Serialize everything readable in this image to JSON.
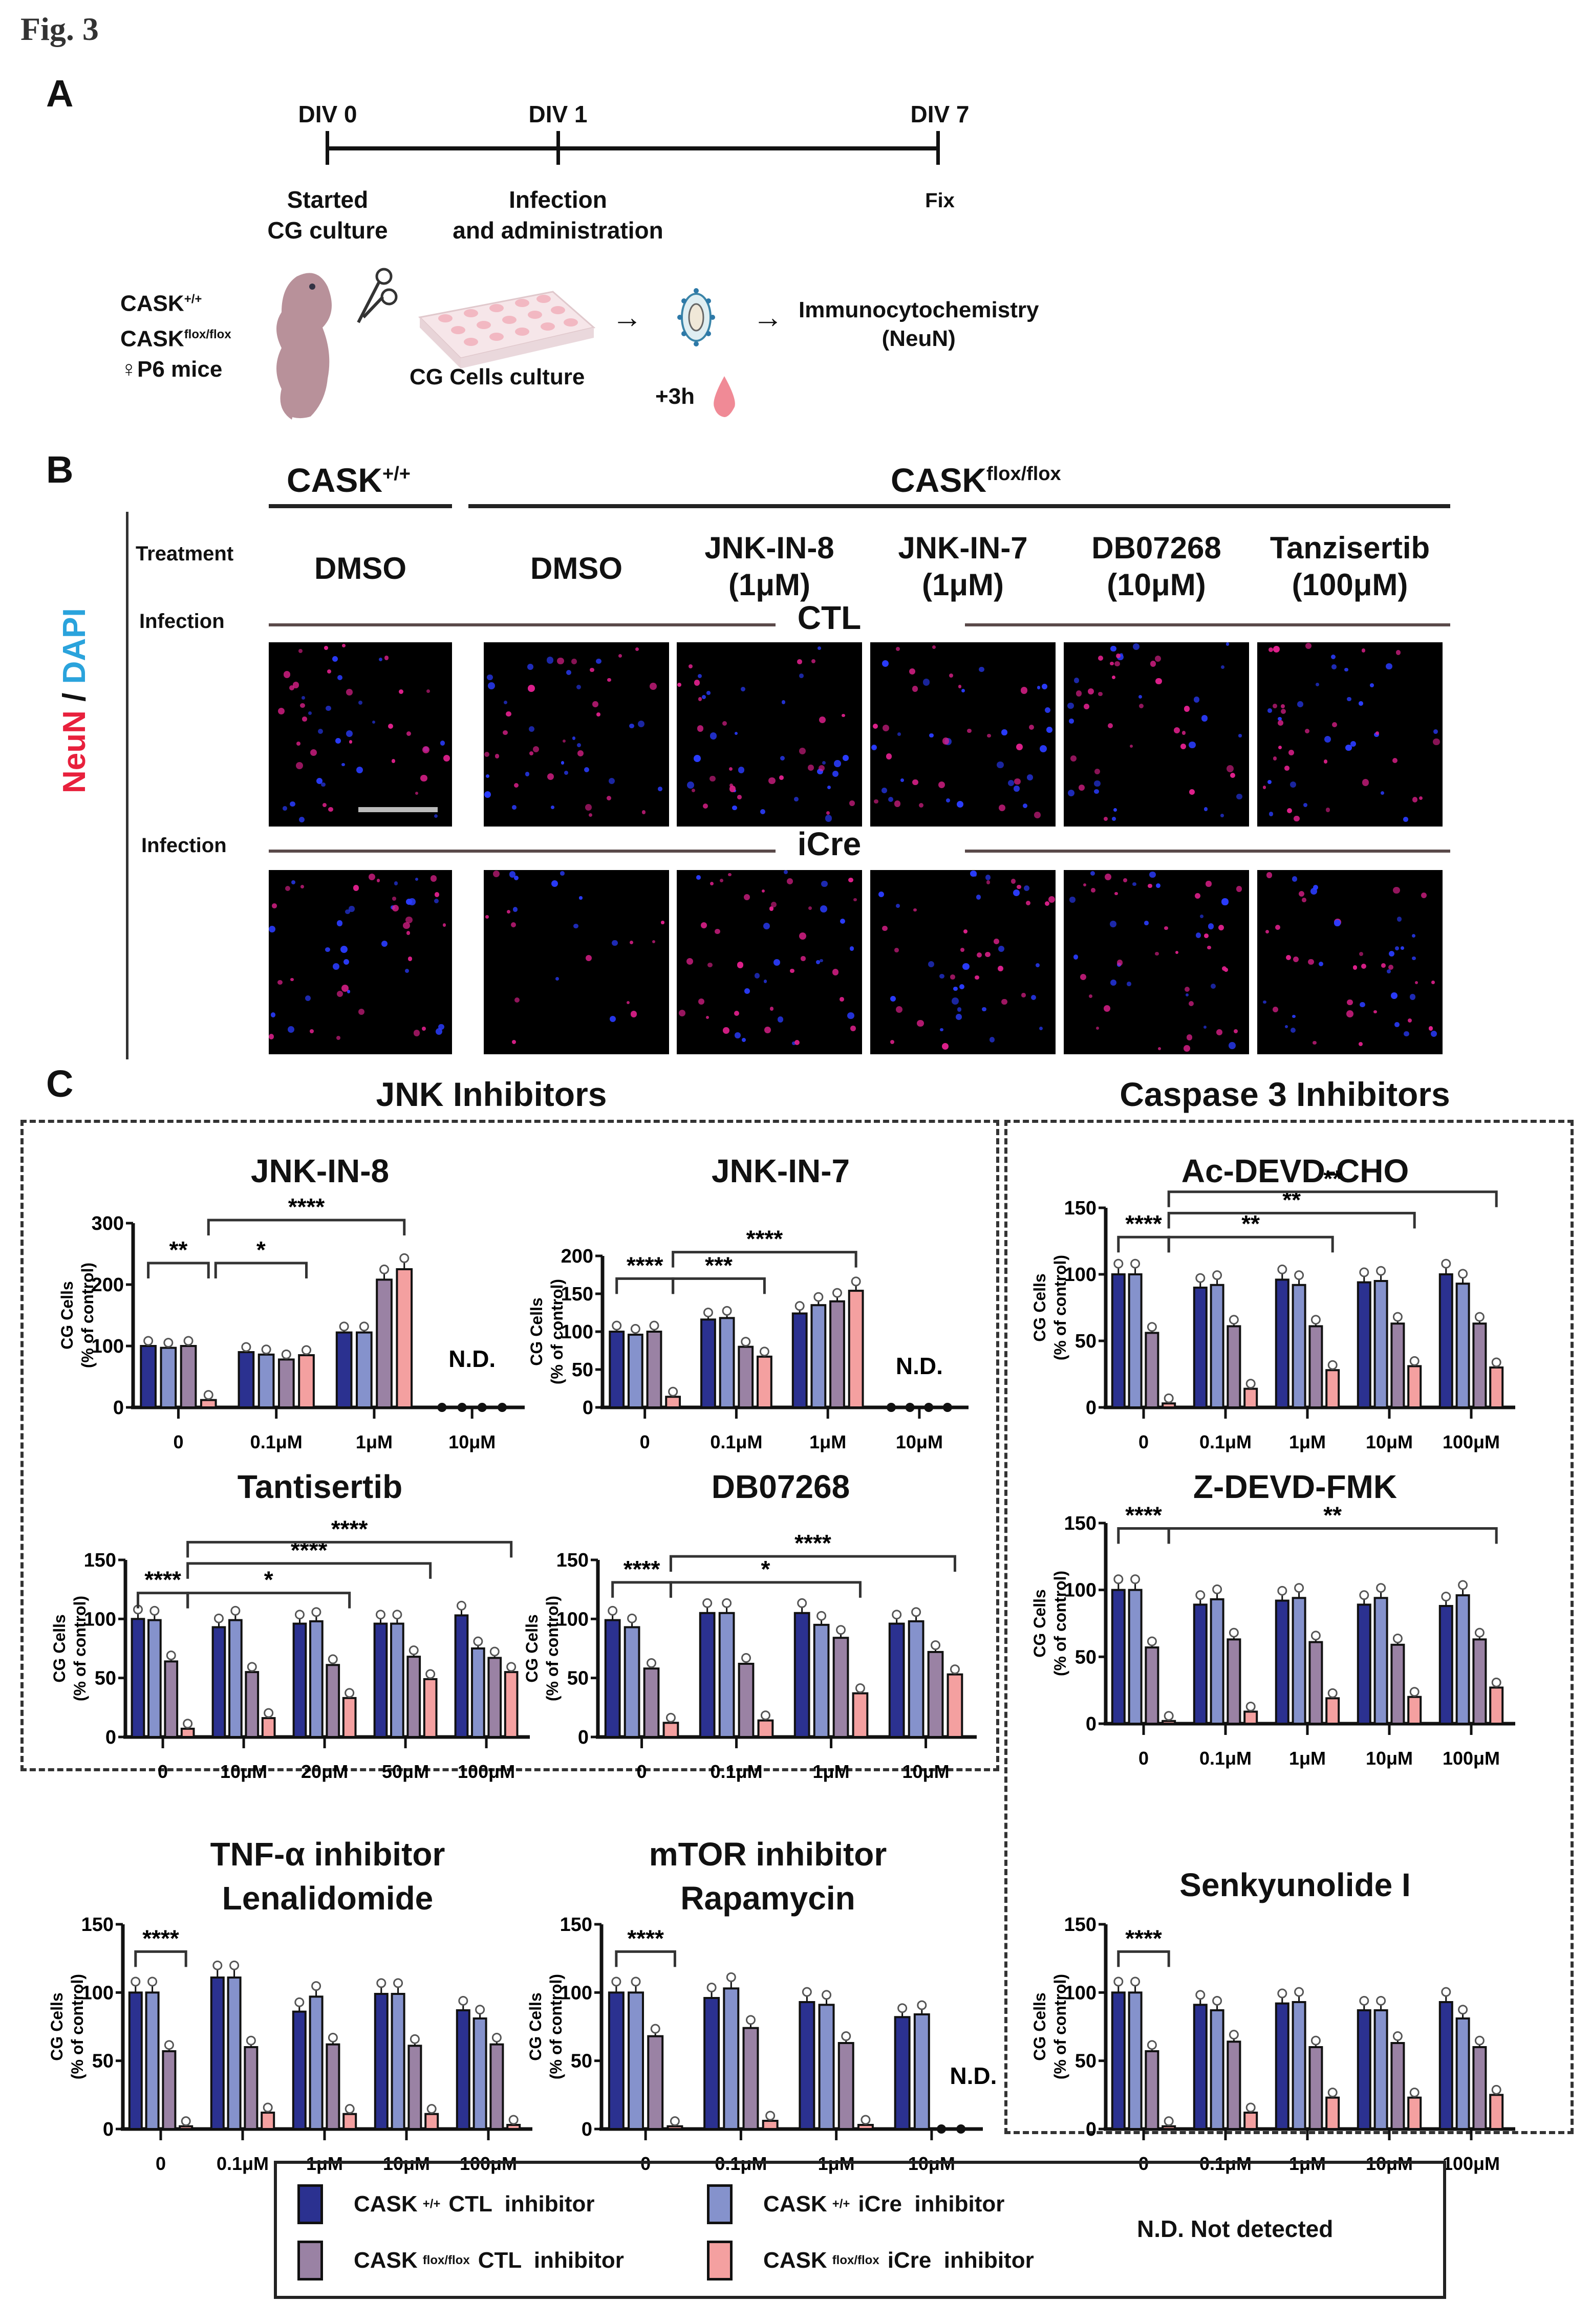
{
  "figure": {
    "label": "Fig. 3"
  },
  "panel_a": {
    "letter": "A",
    "timeline": [
      {
        "tick": "DIV 0",
        "caption_lines": [
          "Started",
          "CG culture"
        ]
      },
      {
        "tick": "DIV 1",
        "caption_lines": [
          "Infection",
          "and administration"
        ]
      },
      {
        "tick": "DIV 7",
        "caption_lines": [
          "Fix"
        ]
      }
    ],
    "mice_label_lines": [
      "CASK",
      "CASK",
      "♀P6 mice"
    ],
    "mice_superscripts": [
      "+/+",
      "flox/flox"
    ],
    "culture_label": "CG Cells culture",
    "time_label": "+3h",
    "readout_lines": [
      "Immunocytochemistry",
      "(NeuN)"
    ],
    "arrow": "→"
  },
  "panel_b": {
    "letter": "B",
    "genotypes": [
      {
        "name": "CASK",
        "sup": "+/+"
      },
      {
        "name": "CASK",
        "sup": "flox/flox"
      }
    ],
    "treatment_label": "Treatment",
    "infection_label": "Infection",
    "treatments": [
      {
        "name": "DMSO",
        "dose": ""
      },
      {
        "name": "DMSO",
        "dose": ""
      },
      {
        "name": "JNK-IN-8",
        "dose": "(1μM)"
      },
      {
        "name": "JNK-IN-7",
        "dose": "(1μM)"
      },
      {
        "name": "DB07268",
        "dose": "(10μM)"
      },
      {
        "name": "Tanzisertib",
        "dose": "(100μM)"
      }
    ],
    "infections": [
      "CTL",
      "iCre"
    ],
    "stain_label": {
      "neun": "NeuN",
      "sep": " / ",
      "dapi": "DAPI"
    },
    "colors": {
      "neun": "#e8203c",
      "dapi": "#2aa3dc"
    }
  },
  "panel_c": {
    "letter": "C",
    "groups": {
      "jnk": "JNK Inhibitors",
      "caspase": "Caspase 3 Inhibitors"
    },
    "y_label_lines": [
      "CG Cells",
      "(% of control)"
    ],
    "legend": {
      "items": [
        {
          "label": "CASK",
          "sup": "+/+",
          "rest": "CTL  inhibitor",
          "color": "#2b3190"
        },
        {
          "label": "CASK",
          "sup": "+/+",
          "rest": "iCre  inhibitor",
          "color": "#8592cc"
        },
        {
          "label": "CASK",
          "sup": "flox/flox",
          "rest": "CTL  inhibitor",
          "color": "#9a82a4"
        },
        {
          "label": "CASK",
          "sup": "flox/flox",
          "rest": "iCre  inhibitor",
          "color": "#f4a0a0"
        }
      ],
      "note": "N.D. Not detected"
    }
  },
  "chart_data": [
    {
      "id": "jnk-in-8",
      "type": "bar",
      "title": "JNK-IN-8",
      "ylabel": "CG Cells (% of control)",
      "ylim": [
        0,
        300
      ],
      "yticks": [
        0,
        100,
        200,
        300
      ],
      "categories": [
        "0",
        "0.1μM",
        "1μM",
        "10μM"
      ],
      "series": [
        {
          "name": "CASK+/+ CTL inhibitor",
          "values": [
            100,
            90,
            122,
            0
          ]
        },
        {
          "name": "CASK+/+ iCre inhibitor",
          "values": [
            97,
            86,
            122,
            0
          ]
        },
        {
          "name": "CASKflox/flox CTL inhibitor",
          "values": [
            100,
            78,
            208,
            0
          ]
        },
        {
          "name": "CASKflox/flox iCre inhibitor",
          "values": [
            12,
            85,
            225,
            0
          ]
        }
      ],
      "nd_categories": [
        3
      ],
      "annotations": [
        {
          "from": 0,
          "to": 3,
          "text": "**",
          "level": 1,
          "start_bar": 0,
          "end_bar": 3
        },
        {
          "from": 0,
          "to": 1,
          "text": "*",
          "level": 1,
          "start_bar": 3,
          "end_bar": 3,
          "to_bar": 1
        },
        {
          "text": "****",
          "level": 2,
          "start_cat": 0,
          "start_bar": 3,
          "end_cat": 2,
          "end_bar": 3
        }
      ]
    },
    {
      "id": "jnk-in-7",
      "type": "bar",
      "title": "JNK-IN-7",
      "ylabel": "CG Cells (% of control)",
      "ylim": [
        0,
        200
      ],
      "yticks": [
        0,
        50,
        100,
        150,
        200
      ],
      "categories": [
        "0",
        "0.1μM",
        "1μM",
        "10μM"
      ],
      "series": [
        {
          "name": "CASK+/+ CTL inhibitor",
          "values": [
            100,
            116,
            124,
            0
          ]
        },
        {
          "name": "CASK+/+ iCre inhibitor",
          "values": [
            96,
            118,
            135,
            0
          ]
        },
        {
          "name": "CASKflox/flox CTL inhibitor",
          "values": [
            100,
            80,
            140,
            0
          ]
        },
        {
          "name": "CASKflox/flox iCre inhibitor",
          "values": [
            14,
            67,
            154,
            0
          ]
        }
      ],
      "nd_categories": [
        3
      ],
      "brackets": [
        {
          "a": [
            0,
            0
          ],
          "b": [
            0,
            3
          ],
          "text": "****",
          "y": 170
        },
        {
          "a": [
            0,
            3
          ],
          "b": [
            1,
            3
          ],
          "text": "***",
          "y": 170
        },
        {
          "a": [
            0,
            3
          ],
          "b": [
            2,
            3
          ],
          "text": "****",
          "y": 205
        }
      ]
    },
    {
      "id": "tantisertib",
      "type": "bar",
      "title": "Tantisertib",
      "ylabel": "CG Cells (% of control)",
      "ylim": [
        0,
        150
      ],
      "yticks": [
        0,
        50,
        100,
        150
      ],
      "categories": [
        "0",
        "10μM",
        "20μM",
        "50μM",
        "100μM"
      ],
      "series": [
        {
          "name": "CASK+/+ CTL inhibitor",
          "values": [
            100,
            93,
            96,
            96,
            103
          ]
        },
        {
          "name": "CASK+/+ iCre inhibitor",
          "values": [
            99,
            99,
            98,
            96,
            75
          ]
        },
        {
          "name": "CASKflox/flox CTL inhibitor",
          "values": [
            64,
            55,
            61,
            68,
            67
          ]
        },
        {
          "name": "CASKflox/flox iCre inhibitor",
          "values": [
            7,
            16,
            33,
            49,
            55
          ]
        }
      ],
      "nd_categories": [],
      "brackets": [
        {
          "a": [
            0,
            0
          ],
          "b": [
            0,
            3
          ],
          "text": "****",
          "y": 122
        },
        {
          "a": [
            0,
            3
          ],
          "b": [
            2,
            3
          ],
          "text": "*",
          "y": 122
        },
        {
          "a": [
            0,
            3
          ],
          "b": [
            3,
            3
          ],
          "text": "****",
          "y": 147
        },
        {
          "a": [
            0,
            3
          ],
          "b": [
            4,
            3
          ],
          "text": "****",
          "y": 165
        }
      ]
    },
    {
      "id": "db07268",
      "type": "bar",
      "title": "DB07268",
      "ylabel": "CG Cells (% of control)",
      "ylim": [
        0,
        150
      ],
      "yticks": [
        0,
        50,
        100,
        150
      ],
      "categories": [
        "0",
        "0.1μM",
        "1μM",
        "10μM"
      ],
      "series": [
        {
          "name": "CASK+/+ CTL inhibitor",
          "values": [
            99,
            105,
            105,
            96
          ]
        },
        {
          "name": "CASK+/+ iCre inhibitor",
          "values": [
            93,
            105,
            95,
            98
          ]
        },
        {
          "name": "CASKflox/flox CTL inhibitor",
          "values": [
            58,
            62,
            84,
            72
          ]
        },
        {
          "name": "CASKflox/flox iCre inhibitor",
          "values": [
            12,
            14,
            37,
            53
          ]
        }
      ],
      "nd_categories": [],
      "brackets": [
        {
          "a": [
            0,
            0
          ],
          "b": [
            0,
            3
          ],
          "text": "****",
          "y": 131
        },
        {
          "a": [
            0,
            3
          ],
          "b": [
            2,
            3
          ],
          "text": "*",
          "y": 131
        },
        {
          "a": [
            0,
            3
          ],
          "b": [
            3,
            3
          ],
          "text": "****",
          "y": 153
        }
      ]
    },
    {
      "id": "ac-devd-cho",
      "type": "bar",
      "title": "Ac-DEVD-CHO",
      "ylabel": "CG Cells (% of control)",
      "ylim": [
        0,
        150
      ],
      "yticks": [
        0,
        50,
        100,
        150
      ],
      "categories": [
        "0",
        "0.1μM",
        "1μM",
        "10μM",
        "100μM"
      ],
      "series": [
        {
          "name": "CASK+/+ CTL inhibitor",
          "values": [
            100,
            90,
            96,
            94,
            100
          ]
        },
        {
          "name": "CASK+/+ iCre inhibitor",
          "values": [
            100,
            92,
            92,
            95,
            93
          ]
        },
        {
          "name": "CASKflox/flox CTL inhibitor",
          "values": [
            56,
            61,
            61,
            63,
            63
          ]
        },
        {
          "name": "CASKflox/flox iCre inhibitor",
          "values": [
            3,
            14,
            28,
            31,
            30
          ]
        }
      ],
      "nd_categories": [],
      "brackets": [
        {
          "a": [
            0,
            0
          ],
          "b": [
            0,
            3
          ],
          "text": "****",
          "y": 128
        },
        {
          "a": [
            0,
            3
          ],
          "b": [
            2,
            3
          ],
          "text": "**",
          "y": 128
        },
        {
          "a": [
            0,
            3
          ],
          "b": [
            3,
            3
          ],
          "text": "**",
          "y": 146
        },
        {
          "a": [
            0,
            3
          ],
          "b": [
            4,
            3
          ],
          "text": "**",
          "y": 162
        }
      ]
    },
    {
      "id": "z-devd-fmk",
      "type": "bar",
      "title": "Z-DEVD-FMK",
      "ylabel": "CG Cells (% of control)",
      "ylim": [
        0,
        150
      ],
      "yticks": [
        0,
        50,
        100,
        150
      ],
      "categories": [
        "0",
        "0.1μM",
        "1μM",
        "10μM",
        "100μM"
      ],
      "series": [
        {
          "name": "CASK+/+ CTL inhibitor",
          "values": [
            100,
            89,
            92,
            89,
            88
          ]
        },
        {
          "name": "CASK+/+ iCre inhibitor",
          "values": [
            100,
            93,
            94,
            94,
            96
          ]
        },
        {
          "name": "CASKflox/flox CTL inhibitor",
          "values": [
            57,
            63,
            61,
            59,
            63
          ]
        },
        {
          "name": "CASKflox/flox iCre inhibitor",
          "values": [
            2,
            9,
            19,
            20,
            27
          ]
        }
      ],
      "nd_categories": [],
      "brackets": [
        {
          "a": [
            0,
            0
          ],
          "b": [
            0,
            3
          ],
          "text": "****",
          "y": 146
        },
        {
          "a": [
            0,
            3
          ],
          "b": [
            4,
            3
          ],
          "text": "**",
          "y": 146
        }
      ]
    },
    {
      "id": "senkyunolide-i",
      "type": "bar",
      "title": "Senkyunolide I",
      "ylabel": "CG Cells (% of control)",
      "ylim": [
        0,
        150
      ],
      "yticks": [
        0,
        50,
        100,
        150
      ],
      "categories": [
        "0",
        "0.1μM",
        "1μM",
        "10μM",
        "100μM"
      ],
      "series": [
        {
          "name": "CASK+/+ CTL inhibitor",
          "values": [
            100,
            91,
            92,
            87,
            93
          ]
        },
        {
          "name": "CASK+/+ iCre inhibitor",
          "values": [
            100,
            87,
            93,
            87,
            81
          ]
        },
        {
          "name": "CASKflox/flox CTL inhibitor",
          "values": [
            57,
            64,
            60,
            63,
            60
          ]
        },
        {
          "name": "CASKflox/flox iCre inhibitor",
          "values": [
            2,
            12,
            23,
            23,
            25
          ]
        }
      ],
      "nd_categories": [],
      "brackets": [
        {
          "a": [
            0,
            0
          ],
          "b": [
            0,
            3
          ],
          "text": "****",
          "y": 130
        }
      ]
    },
    {
      "id": "lenalidomide",
      "type": "bar",
      "title": "TNF-α inhibitor\nLenalidomide",
      "ylabel": "CG Cells (% of control)",
      "ylim": [
        0,
        150
      ],
      "yticks": [
        0,
        50,
        100,
        150
      ],
      "categories": [
        "0",
        "0.1μM",
        "1μM",
        "10μM",
        "100μM"
      ],
      "series": [
        {
          "name": "CASK+/+ CTL inhibitor",
          "values": [
            100,
            111,
            86,
            99,
            87
          ]
        },
        {
          "name": "CASK+/+ iCre inhibitor",
          "values": [
            100,
            111,
            97,
            99,
            81
          ]
        },
        {
          "name": "CASKflox/flox CTL inhibitor",
          "values": [
            57,
            60,
            62,
            61,
            62
          ]
        },
        {
          "name": "CASKflox/flox iCre inhibitor",
          "values": [
            2,
            12,
            11,
            11,
            3
          ]
        }
      ],
      "nd_categories": [],
      "brackets": [
        {
          "a": [
            0,
            0
          ],
          "b": [
            0,
            3
          ],
          "text": "****",
          "y": 130
        }
      ]
    },
    {
      "id": "rapamycin",
      "type": "bar",
      "title": "mTOR inhibitor\nRapamycin",
      "ylabel": "CG Cells (% of control)",
      "ylim": [
        0,
        150
      ],
      "yticks": [
        0,
        50,
        100,
        150
      ],
      "categories": [
        "0",
        "0.1μM",
        "1μM",
        "10μM"
      ],
      "series": [
        {
          "name": "CASK+/+ CTL inhibitor",
          "values": [
            100,
            96,
            93,
            82
          ]
        },
        {
          "name": "CASK+/+ iCre inhibitor",
          "values": [
            100,
            103,
            91,
            84
          ]
        },
        {
          "name": "CASKflox/flox CTL inhibitor",
          "values": [
            68,
            74,
            63,
            0
          ]
        },
        {
          "name": "CASKflox/flox iCre inhibitor",
          "values": [
            2,
            6,
            3,
            0
          ]
        }
      ],
      "nd_categories": [
        3
      ],
      "nd_partial": true,
      "brackets": [
        {
          "a": [
            0,
            0
          ],
          "b": [
            0,
            3
          ],
          "text": "****",
          "y": 130
        }
      ]
    }
  ]
}
